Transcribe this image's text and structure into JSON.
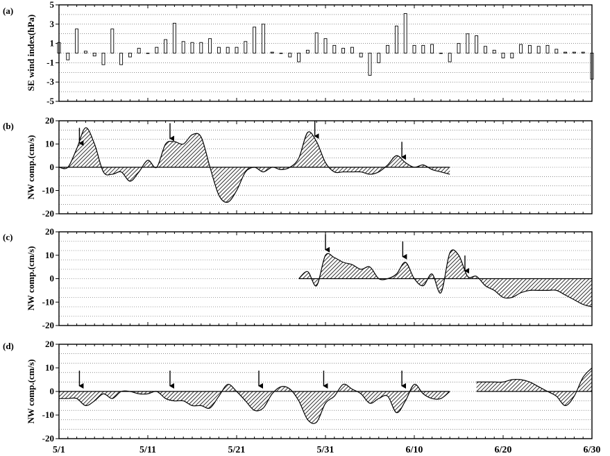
{
  "chart_data": [
    {
      "type": "bar",
      "panel_label": "(a)",
      "ylabel": "SE wind index(hPa)",
      "ylim": [
        -5,
        5
      ],
      "yticks": [
        "5",
        "3",
        "1",
        "-1",
        "-3",
        "-5"
      ],
      "ytick_values": [
        5,
        3,
        1,
        -1,
        -3,
        -5
      ],
      "grid": "horizontal dotted",
      "x": [
        1,
        2,
        3,
        4,
        5,
        6,
        7,
        8,
        9,
        10,
        11,
        12,
        13,
        14,
        15,
        16,
        17,
        18,
        19,
        20,
        21,
        22,
        23,
        24,
        25,
        26,
        27,
        28,
        29,
        30,
        31,
        32,
        33,
        34,
        35,
        36,
        37,
        38,
        39,
        40,
        41,
        42,
        43,
        44,
        45,
        46,
        47,
        48,
        49,
        50,
        51,
        52,
        53,
        54,
        55,
        56,
        57,
        58,
        59,
        60,
        61
      ],
      "values": [
        1.1,
        -0.7,
        2.5,
        0.2,
        -0.3,
        -1.2,
        2.5,
        -1.2,
        -0.4,
        0.5,
        0,
        0.6,
        1.4,
        3.1,
        1.2,
        1.1,
        1.1,
        1.5,
        0.6,
        0.6,
        0.6,
        1.2,
        2.7,
        3.0,
        0.1,
        0,
        -0.4,
        -0.9,
        0.3,
        2.1,
        1.5,
        0.8,
        0.5,
        0.6,
        -0.4,
        -2.3,
        -1.0,
        0.8,
        2.8,
        4.1,
        0.8,
        0.8,
        0.9,
        0,
        -0.9,
        1.0,
        2.0,
        1.8,
        0.7,
        0.3,
        -0.5,
        -0.5,
        0.9,
        0.8,
        0.7,
        0.8,
        0.4,
        0.1,
        0.1,
        0.1,
        -2.7
      ]
    },
    {
      "type": "area",
      "panel_label": "(b)",
      "ylabel": "NW comp.(cm/s)",
      "ylim": [
        -20,
        20
      ],
      "yticks": [
        "20",
        "10",
        "0",
        "-10",
        "-20"
      ],
      "ytick_values": [
        20,
        10,
        0,
        -10,
        -20
      ],
      "grid": "horizontal dotted",
      "x": [
        1,
        2,
        3,
        4,
        5,
        6,
        7,
        8,
        9,
        10,
        11,
        12,
        13,
        14,
        15,
        16,
        17,
        18,
        19,
        20,
        21,
        22,
        23,
        24,
        25,
        26,
        27,
        28,
        29,
        30,
        31,
        32,
        33,
        34,
        35,
        36,
        37,
        38,
        39,
        40,
        41,
        42,
        43,
        44,
        45
      ],
      "values": [
        0,
        0,
        8,
        17,
        10,
        -2,
        -3,
        -2,
        -6,
        -2,
        3,
        0,
        10,
        11,
        10,
        14,
        13,
        0,
        -12,
        -15,
        -10,
        -2,
        0,
        -2,
        0,
        -1,
        0,
        4,
        15,
        11,
        2,
        -2,
        -2,
        -2,
        -2,
        -3,
        -2,
        1,
        5,
        2,
        0,
        1,
        -1,
        -2,
        -3
      ],
      "arrow_x": [
        3.3,
        13.5,
        29.8,
        39.6
      ]
    },
    {
      "type": "area",
      "panel_label": "(c)",
      "ylabel": "NW comp.(cm/s)",
      "ylim": [
        -20,
        20
      ],
      "yticks": [
        "20",
        "10",
        "0",
        "-10",
        "-20"
      ],
      "ytick_values": [
        20,
        10,
        0,
        -10,
        -20
      ],
      "grid": "horizontal dotted",
      "x": [
        28,
        29,
        30,
        31,
        32,
        33,
        34,
        35,
        36,
        37,
        38,
        39,
        40,
        41,
        42,
        43,
        44,
        45,
        46,
        47,
        48,
        49,
        50,
        51,
        52,
        53,
        54,
        55,
        56,
        57,
        58,
        59,
        60,
        61
      ],
      "values": [
        0,
        3,
        -3,
        10,
        9,
        7,
        6,
        4,
        5,
        0,
        0,
        2,
        7,
        0,
        -3,
        2,
        -6,
        11,
        10,
        1,
        1,
        -3,
        -5,
        -8,
        -8,
        -6,
        -5,
        -5,
        -5,
        -5,
        -7,
        -9,
        -11,
        -12
      ],
      "arrow_x": [
        31.0,
        39.7,
        46.7
      ]
    },
    {
      "type": "area",
      "panel_label": "(d)",
      "ylabel": "NW comp.(cm/s)",
      "ylim": [
        -20,
        20
      ],
      "yticks": [
        "20",
        "10",
        "0",
        "-10",
        "-20"
      ],
      "ytick_values": [
        20,
        10,
        0,
        -10,
        -20
      ],
      "grid": "horizontal dotted",
      "segments": [
        {
          "x": [
            1,
            2,
            3,
            4,
            5,
            6,
            7,
            8,
            9,
            10,
            11,
            12,
            13,
            14,
            15,
            16,
            17,
            18,
            19,
            20,
            21,
            22,
            23,
            24,
            25,
            26,
            27,
            28,
            29,
            30,
            31,
            32,
            33,
            34,
            35,
            36,
            37,
            38,
            39,
            40,
            41,
            42,
            43,
            44,
            45
          ],
          "values": [
            -3,
            -3,
            -3,
            -6,
            -4,
            -1,
            -3,
            0,
            0,
            -1,
            -1,
            0,
            -3,
            -4,
            -4,
            -6,
            -6,
            -7,
            -2,
            3,
            0,
            -4,
            -8,
            -7,
            -1,
            2,
            1,
            -4,
            -12,
            -13,
            -5,
            -2,
            3,
            1,
            -1,
            -5,
            -3,
            -2,
            -9,
            -4,
            3,
            -1,
            -3,
            -3,
            0
          ]
        },
        {
          "x": [
            48,
            49,
            50,
            51,
            52,
            53,
            54,
            55,
            56,
            57,
            58,
            59,
            60,
            61
          ],
          "values": [
            4,
            4,
            4,
            4,
            5,
            5,
            4,
            2,
            0,
            -2,
            -6,
            -2,
            6,
            10
          ]
        }
      ],
      "arrow_x": [
        3.3,
        13.5,
        23.5,
        30.8,
        39.6
      ]
    }
  ],
  "x_axis": {
    "xlim": [
      1,
      61
    ],
    "tick_labels": [
      "5/1",
      "5/11",
      "5/21",
      "5/31",
      "6/10",
      "6/20",
      "6/30"
    ],
    "tick_values": [
      1,
      11,
      21,
      31,
      41,
      51,
      61
    ]
  }
}
